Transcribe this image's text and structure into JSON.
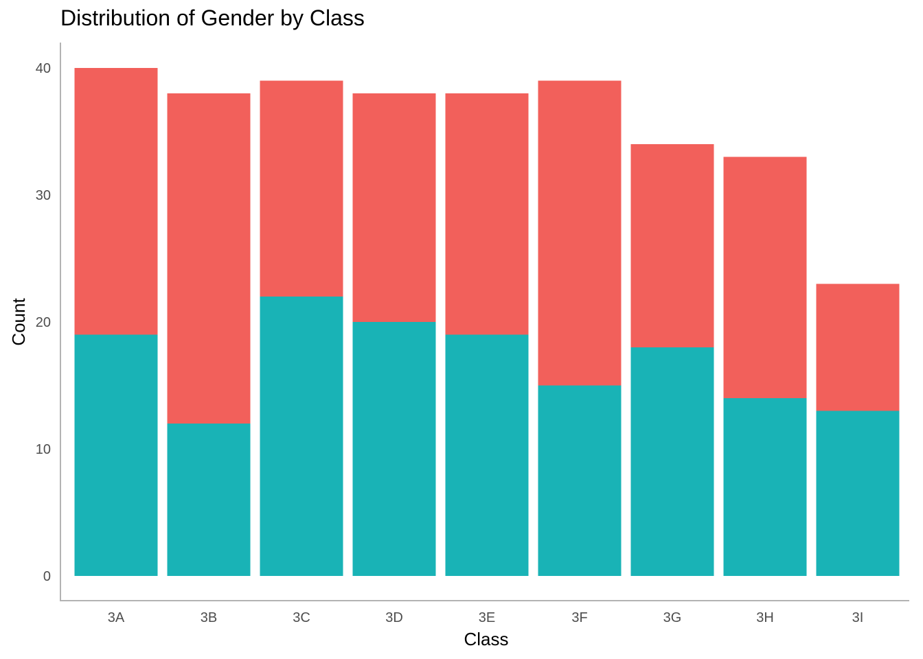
{
  "chart_data": {
    "type": "bar",
    "stacked": true,
    "title": "Distribution of Gender by Class",
    "xlabel": "Class",
    "ylabel": "Count",
    "categories": [
      "3A",
      "3B",
      "3C",
      "3D",
      "3E",
      "3F",
      "3G",
      "3H",
      "3I"
    ],
    "series": [
      {
        "values": [
          19,
          12,
          22,
          20,
          19,
          15,
          18,
          14,
          13
        ],
        "color": "#19B3B6"
      },
      {
        "values": [
          21,
          26,
          17,
          18,
          19,
          24,
          16,
          19,
          10
        ],
        "color": "#F2605B"
      }
    ],
    "ylim": [
      0,
      42
    ],
    "yticks": [
      0,
      10,
      20,
      30,
      40
    ],
    "grid": false,
    "legend": "none",
    "axis_color": "#b3b3b3"
  }
}
